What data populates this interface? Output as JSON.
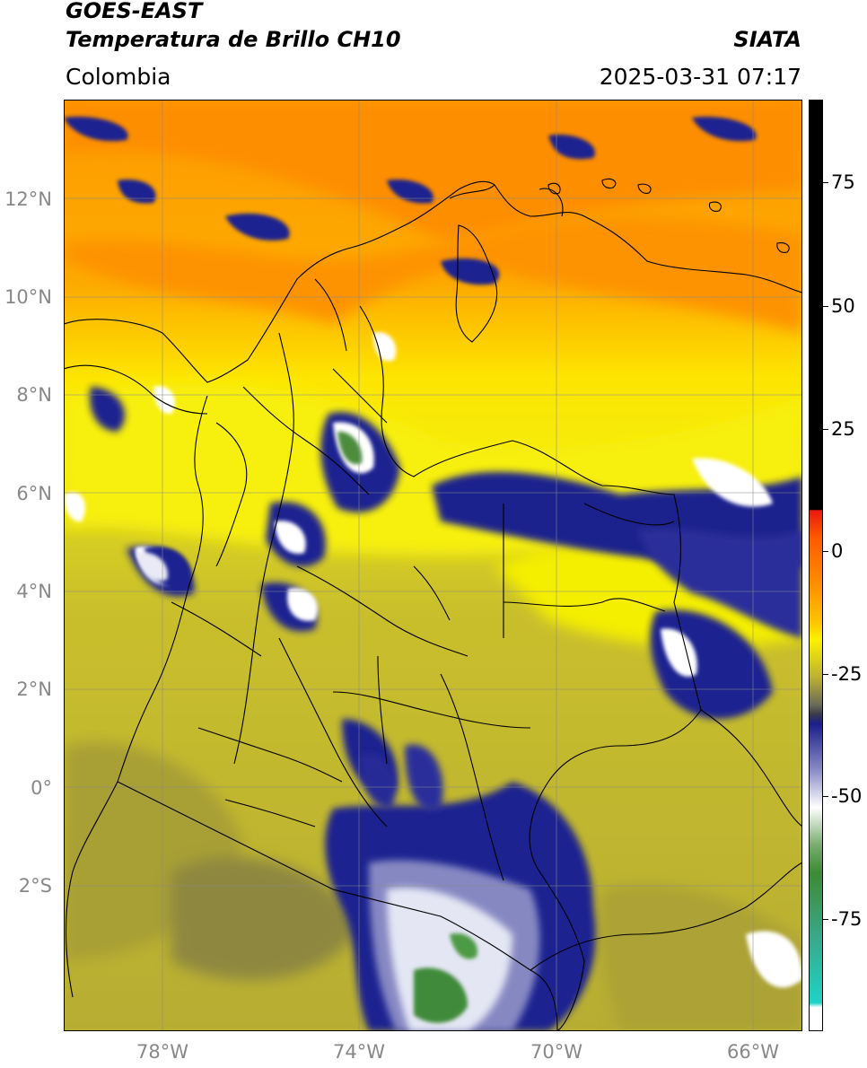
{
  "header": {
    "title_line1": "GOES-EAST",
    "title_line2": "Temperatura de Brillo CH10",
    "brand": "SIATA",
    "region": "Colombia",
    "timestamp": "2025-03-31 07:17"
  },
  "map": {
    "lon_range": [
      -80.0,
      -65.0
    ],
    "lat_range": [
      -5.0,
      14.0
    ],
    "lat_ticks": [
      "12°N",
      "10°N",
      "8°N",
      "6°N",
      "4°N",
      "2°N",
      "0°",
      "2°S"
    ],
    "lon_ticks": [
      "78°W",
      "74°W",
      "70°W",
      "66°W"
    ],
    "gridlines": true
  },
  "colorbar": {
    "range": [
      -95,
      90
    ],
    "tick_labels": [
      "75",
      "50",
      "25",
      "0",
      "-25",
      "-50",
      "-75"
    ],
    "colors": {
      "black": "#000000",
      "red": "#e8190f",
      "orange": "#fd8e00",
      "yellow": "#fbf100",
      "olive": "#bdb133",
      "gray": "#6a6a5a",
      "navy": "#1a1e8a",
      "white": "#ffffff",
      "green": "#3c8b35",
      "teal": "#1fd3c6"
    }
  }
}
